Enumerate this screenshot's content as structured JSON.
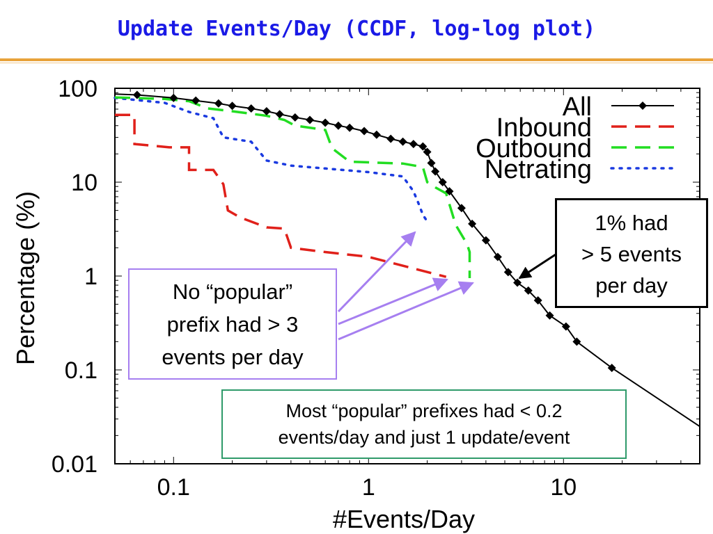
{
  "slide": {
    "title": "Update Events/Day (CCDF, log-log plot)"
  },
  "chart_data": {
    "type": "line",
    "xscale": "log",
    "yscale": "log",
    "xlim": [
      0.05,
      50
    ],
    "ylim": [
      0.01,
      100
    ],
    "xlabel": "#Events/Day",
    "ylabel": "Percentage (%)",
    "xticks": [
      {
        "value": 0.1,
        "label": "0.1"
      },
      {
        "value": 1,
        "label": "1"
      },
      {
        "value": 10,
        "label": "10"
      }
    ],
    "yticks": [
      {
        "value": 100,
        "label": "100"
      },
      {
        "value": 10,
        "label": "10"
      },
      {
        "value": 1,
        "label": "1"
      },
      {
        "value": 0.1,
        "label": "0.1"
      },
      {
        "value": 0.01,
        "label": "0.01"
      }
    ],
    "grid": false,
    "legend_position": "top-right",
    "series": [
      {
        "name": "All",
        "color": "#000000",
        "style": "solid-diamond",
        "points": [
          [
            0.05,
            87
          ],
          [
            0.065,
            85
          ],
          [
            0.1,
            79
          ],
          [
            0.13,
            74
          ],
          [
            0.17,
            69
          ],
          [
            0.2,
            65
          ],
          [
            0.25,
            61
          ],
          [
            0.3,
            57
          ],
          [
            0.35,
            53
          ],
          [
            0.42,
            49
          ],
          [
            0.5,
            46
          ],
          [
            0.6,
            43
          ],
          [
            0.7,
            40
          ],
          [
            0.8,
            38
          ],
          [
            0.95,
            35
          ],
          [
            1.1,
            32
          ],
          [
            1.3,
            29
          ],
          [
            1.5,
            27
          ],
          [
            1.7,
            25.5
          ],
          [
            1.9,
            24
          ],
          [
            2.0,
            21
          ],
          [
            2.1,
            16
          ],
          [
            2.2,
            13
          ],
          [
            2.4,
            10
          ],
          [
            2.6,
            8
          ],
          [
            3.0,
            5.3
          ],
          [
            3.4,
            3.6
          ],
          [
            4.0,
            2.4
          ],
          [
            4.6,
            1.6
          ],
          [
            5.2,
            1.1
          ],
          [
            5.8,
            0.85
          ],
          [
            6.6,
            0.7
          ],
          [
            7.4,
            0.55
          ],
          [
            8.5,
            0.38
          ],
          [
            10.3,
            0.29
          ],
          [
            11.7,
            0.2
          ],
          [
            17.7,
            0.105
          ],
          [
            50,
            0.025
          ]
        ]
      },
      {
        "name": "Inbound",
        "color": "#e0201a",
        "style": "dashed",
        "points": [
          [
            0.05,
            52
          ],
          [
            0.063,
            52
          ],
          [
            0.063,
            25.5
          ],
          [
            0.095,
            23.5
          ],
          [
            0.12,
            23.5
          ],
          [
            0.12,
            13.5
          ],
          [
            0.16,
            13.5
          ],
          [
            0.18,
            9.5
          ],
          [
            0.19,
            5
          ],
          [
            0.22,
            4.2
          ],
          [
            0.3,
            3.3
          ],
          [
            0.37,
            3.2
          ],
          [
            0.4,
            2
          ],
          [
            0.6,
            1.8
          ],
          [
            1.0,
            1.6
          ],
          [
            2.5,
            0.98
          ]
        ]
      },
      {
        "name": "Outbound",
        "color": "#22dd22",
        "style": "dashed",
        "points": [
          [
            0.05,
            80
          ],
          [
            0.09,
            77
          ],
          [
            0.12,
            73
          ],
          [
            0.15,
            61
          ],
          [
            0.2,
            57
          ],
          [
            0.3,
            51
          ],
          [
            0.37,
            46
          ],
          [
            0.42,
            40
          ],
          [
            0.6,
            36
          ],
          [
            0.65,
            23
          ],
          [
            0.8,
            16.5
          ],
          [
            1.5,
            15.8
          ],
          [
            1.9,
            14.5
          ],
          [
            2.0,
            10
          ],
          [
            2.2,
            8.8
          ],
          [
            2.5,
            7.6
          ],
          [
            2.8,
            3.5
          ],
          [
            3.2,
            2.2
          ],
          [
            3.3,
            1.8
          ],
          [
            3.3,
            0.95
          ]
        ]
      },
      {
        "name": "Netrating",
        "color": "#1a3ae0",
        "style": "dotted",
        "points": [
          [
            0.05,
            79
          ],
          [
            0.09,
            70
          ],
          [
            0.12,
            56
          ],
          [
            0.16,
            48
          ],
          [
            0.18,
            30
          ],
          [
            0.25,
            27
          ],
          [
            0.3,
            17
          ],
          [
            0.4,
            15
          ],
          [
            0.6,
            14
          ],
          [
            1.0,
            12.8
          ],
          [
            1.5,
            11.5
          ],
          [
            1.7,
            8
          ],
          [
            1.8,
            6
          ],
          [
            1.9,
            4.5
          ],
          [
            2.0,
            3.8
          ]
        ]
      }
    ],
    "annotations": [
      {
        "id": "popular",
        "text": "No “popular”\nprefix had > 3\nevents per day",
        "color": "#a67ff0"
      },
      {
        "id": "one-percent",
        "text": "1% had\n> 5 events\nper day",
        "color": "#000000"
      },
      {
        "id": "most-popular",
        "text": "Most “popular” prefixes had < 0.2\nevents/day and just 1 update/event",
        "color": "#2e9a6a"
      }
    ]
  }
}
